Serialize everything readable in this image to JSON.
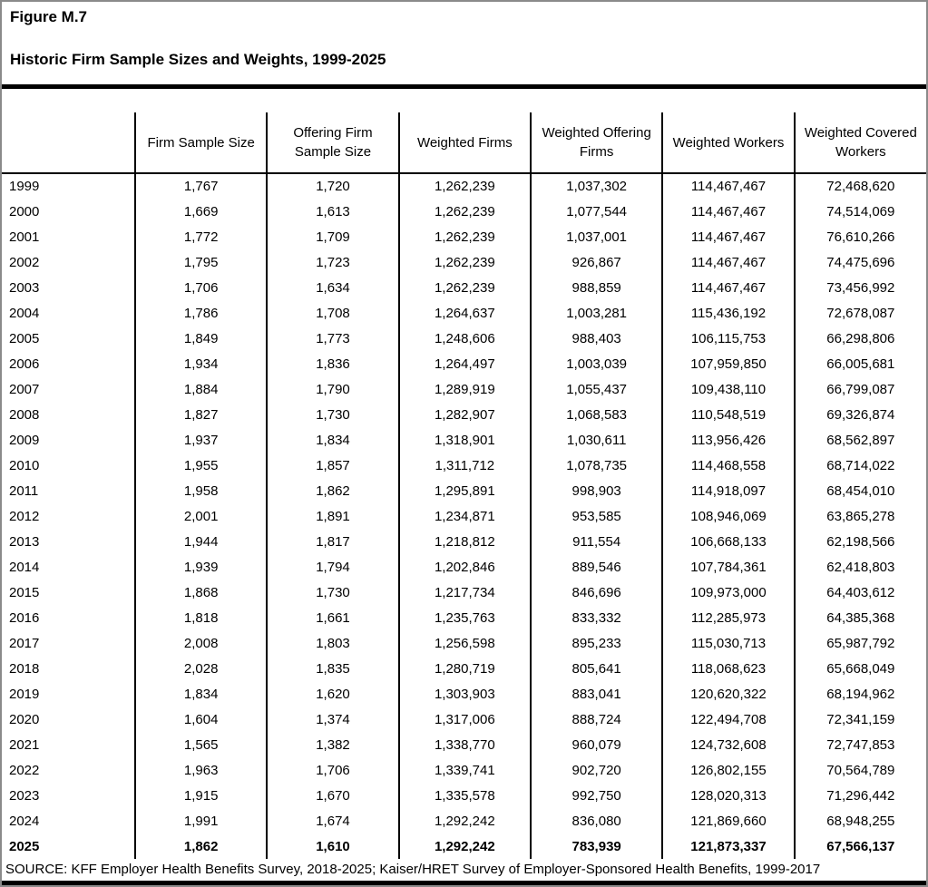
{
  "figure": {
    "label": "Figure M.7",
    "title": "Historic Firm Sample Sizes and Weights, 1999-2025"
  },
  "chart_data": {
    "type": "table",
    "columns": [
      "",
      "Firm Sample Size",
      "Offering Firm Sample Size",
      "Weighted Firms",
      "Weighted Offering Firms",
      "Weighted Workers",
      "Weighted Covered Workers"
    ],
    "rows": [
      [
        "1999",
        "1,767",
        "1,720",
        "1,262,239",
        "1,037,302",
        "114,467,467",
        "72,468,620"
      ],
      [
        "2000",
        "1,669",
        "1,613",
        "1,262,239",
        "1,077,544",
        "114,467,467",
        "74,514,069"
      ],
      [
        "2001",
        "1,772",
        "1,709",
        "1,262,239",
        "1,037,001",
        "114,467,467",
        "76,610,266"
      ],
      [
        "2002",
        "1,795",
        "1,723",
        "1,262,239",
        "926,867",
        "114,467,467",
        "74,475,696"
      ],
      [
        "2003",
        "1,706",
        "1,634",
        "1,262,239",
        "988,859",
        "114,467,467",
        "73,456,992"
      ],
      [
        "2004",
        "1,786",
        "1,708",
        "1,264,637",
        "1,003,281",
        "115,436,192",
        "72,678,087"
      ],
      [
        "2005",
        "1,849",
        "1,773",
        "1,248,606",
        "988,403",
        "106,115,753",
        "66,298,806"
      ],
      [
        "2006",
        "1,934",
        "1,836",
        "1,264,497",
        "1,003,039",
        "107,959,850",
        "66,005,681"
      ],
      [
        "2007",
        "1,884",
        "1,790",
        "1,289,919",
        "1,055,437",
        "109,438,110",
        "66,799,087"
      ],
      [
        "2008",
        "1,827",
        "1,730",
        "1,282,907",
        "1,068,583",
        "110,548,519",
        "69,326,874"
      ],
      [
        "2009",
        "1,937",
        "1,834",
        "1,318,901",
        "1,030,611",
        "113,956,426",
        "68,562,897"
      ],
      [
        "2010",
        "1,955",
        "1,857",
        "1,311,712",
        "1,078,735",
        "114,468,558",
        "68,714,022"
      ],
      [
        "2011",
        "1,958",
        "1,862",
        "1,295,891",
        "998,903",
        "114,918,097",
        "68,454,010"
      ],
      [
        "2012",
        "2,001",
        "1,891",
        "1,234,871",
        "953,585",
        "108,946,069",
        "63,865,278"
      ],
      [
        "2013",
        "1,944",
        "1,817",
        "1,218,812",
        "911,554",
        "106,668,133",
        "62,198,566"
      ],
      [
        "2014",
        "1,939",
        "1,794",
        "1,202,846",
        "889,546",
        "107,784,361",
        "62,418,803"
      ],
      [
        "2015",
        "1,868",
        "1,730",
        "1,217,734",
        "846,696",
        "109,973,000",
        "64,403,612"
      ],
      [
        "2016",
        "1,818",
        "1,661",
        "1,235,763",
        "833,332",
        "112,285,973",
        "64,385,368"
      ],
      [
        "2017",
        "2,008",
        "1,803",
        "1,256,598",
        "895,233",
        "115,030,713",
        "65,987,792"
      ],
      [
        "2018",
        "2,028",
        "1,835",
        "1,280,719",
        "805,641",
        "118,068,623",
        "65,668,049"
      ],
      [
        "2019",
        "1,834",
        "1,620",
        "1,303,903",
        "883,041",
        "120,620,322",
        "68,194,962"
      ],
      [
        "2020",
        "1,604",
        "1,374",
        "1,317,006",
        "888,724",
        "122,494,708",
        "72,341,159"
      ],
      [
        "2021",
        "1,565",
        "1,382",
        "1,338,770",
        "960,079",
        "124,732,608",
        "72,747,853"
      ],
      [
        "2022",
        "1,963",
        "1,706",
        "1,339,741",
        "902,720",
        "126,802,155",
        "70,564,789"
      ],
      [
        "2023",
        "1,915",
        "1,670",
        "1,335,578",
        "992,750",
        "128,020,313",
        "71,296,442"
      ],
      [
        "2024",
        "1,991",
        "1,674",
        "1,292,242",
        "836,080",
        "121,869,660",
        "68,948,255"
      ],
      [
        "2025",
        "1,862",
        "1,610",
        "1,292,242",
        "783,939",
        "121,873,337",
        "67,566,137"
      ]
    ],
    "bold_row": "2025"
  },
  "footer": {
    "source": "SOURCE: KFF Employer Health Benefits Survey, 2018-2025; Kaiser/HRET Survey of Employer-Sponsored Health Benefits, 1999-2017"
  },
  "colors": {
    "text": "#000000",
    "background": "#ffffff",
    "rule": "#000000",
    "outer_border": "#8a8a8a"
  }
}
